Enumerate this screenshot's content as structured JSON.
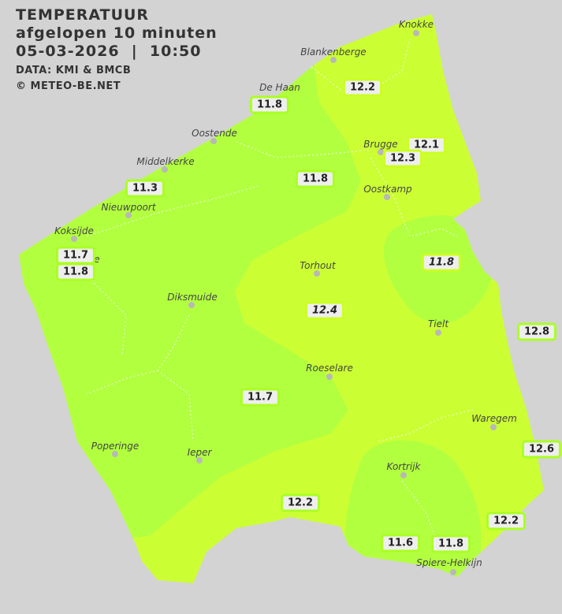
{
  "header": {
    "title": "TEMPERATUUR",
    "subtitle": "afgelopen 10 minuten",
    "datetime": "05-03-2026  |  10:50",
    "source": "DATA: KMI & BMCB",
    "copyright": "© METEO-BE.NET"
  },
  "colors": {
    "background": "#d3d3d3",
    "zone_12_plus": "#ccff33",
    "zone_11_12": "#b2ff40"
  },
  "cities": [
    "Knokke",
    "Blankenberge",
    "De Haan",
    "Oostende",
    "Brugge",
    "Middelkerke",
    "Oostkamp",
    "Nieuwpoort",
    "Koksijde",
    "Torhout",
    "Diksmuide",
    "Tielt",
    "Roeselare",
    "Waregem",
    "Poperinge",
    "Ieper",
    "Kortrijk",
    "Spiere-Helkijn"
  ],
  "hidden_label_fragment": "e",
  "values": [
    "12.2",
    "11.8",
    "12.1",
    "12.3",
    "11.8",
    "11.3",
    "11.7",
    "11.8",
    "11.8",
    "12.4",
    "12.8",
    "11.7",
    "12.6",
    "12.2",
    "12.2",
    "11.6",
    "11.8"
  ]
}
